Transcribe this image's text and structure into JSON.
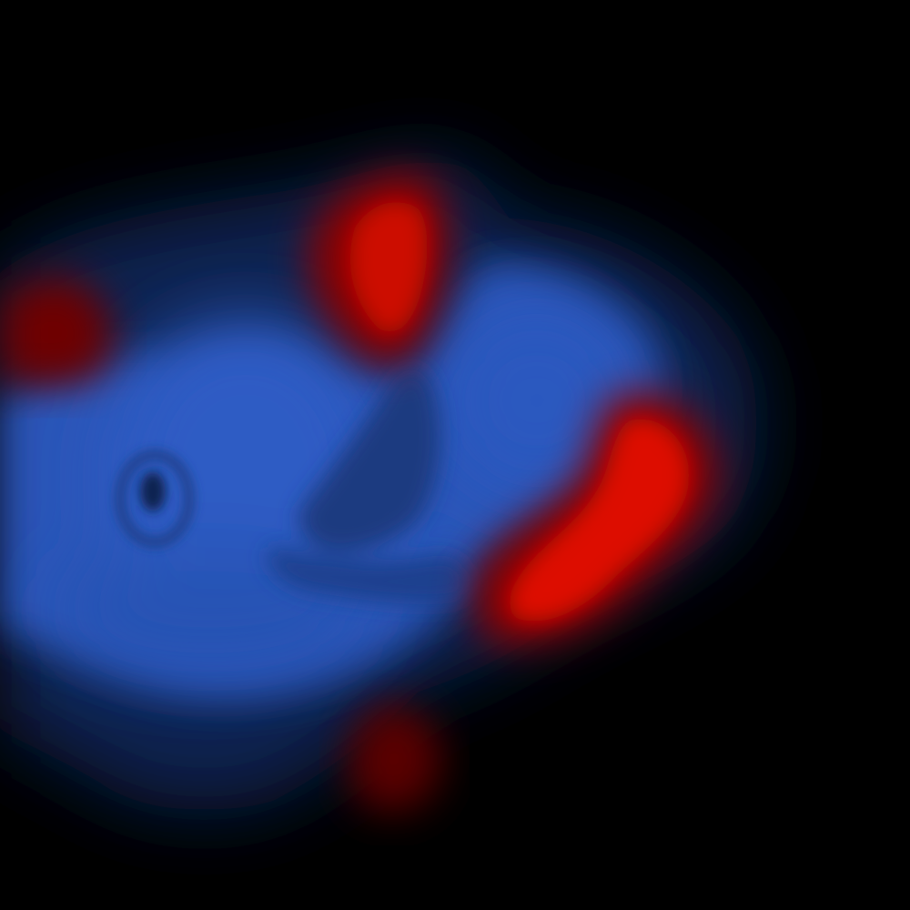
{
  "image": {
    "kind": "contour-rendered scalar field",
    "background_color": "#000000",
    "palette": {
      "negative": "#2a55b8",
      "negative_dark": "#1a3a80",
      "negative_deep": "#173878",
      "positive": "#cc0a00",
      "positive_bright": "#dd1100",
      "positive_dark": "#8a0500",
      "positive_deep": "#5a0000"
    },
    "regions": [
      {
        "name": "blue-main-lobe",
        "sign": "negative"
      },
      {
        "name": "blue-dark-groove",
        "sign": "negative"
      },
      {
        "name": "red-top-lobe",
        "sign": "positive"
      },
      {
        "name": "red-right-lobe",
        "sign": "positive"
      },
      {
        "name": "red-left-lobe",
        "sign": "positive"
      },
      {
        "name": "red-bottom-lobe",
        "sign": "positive"
      }
    ]
  }
}
